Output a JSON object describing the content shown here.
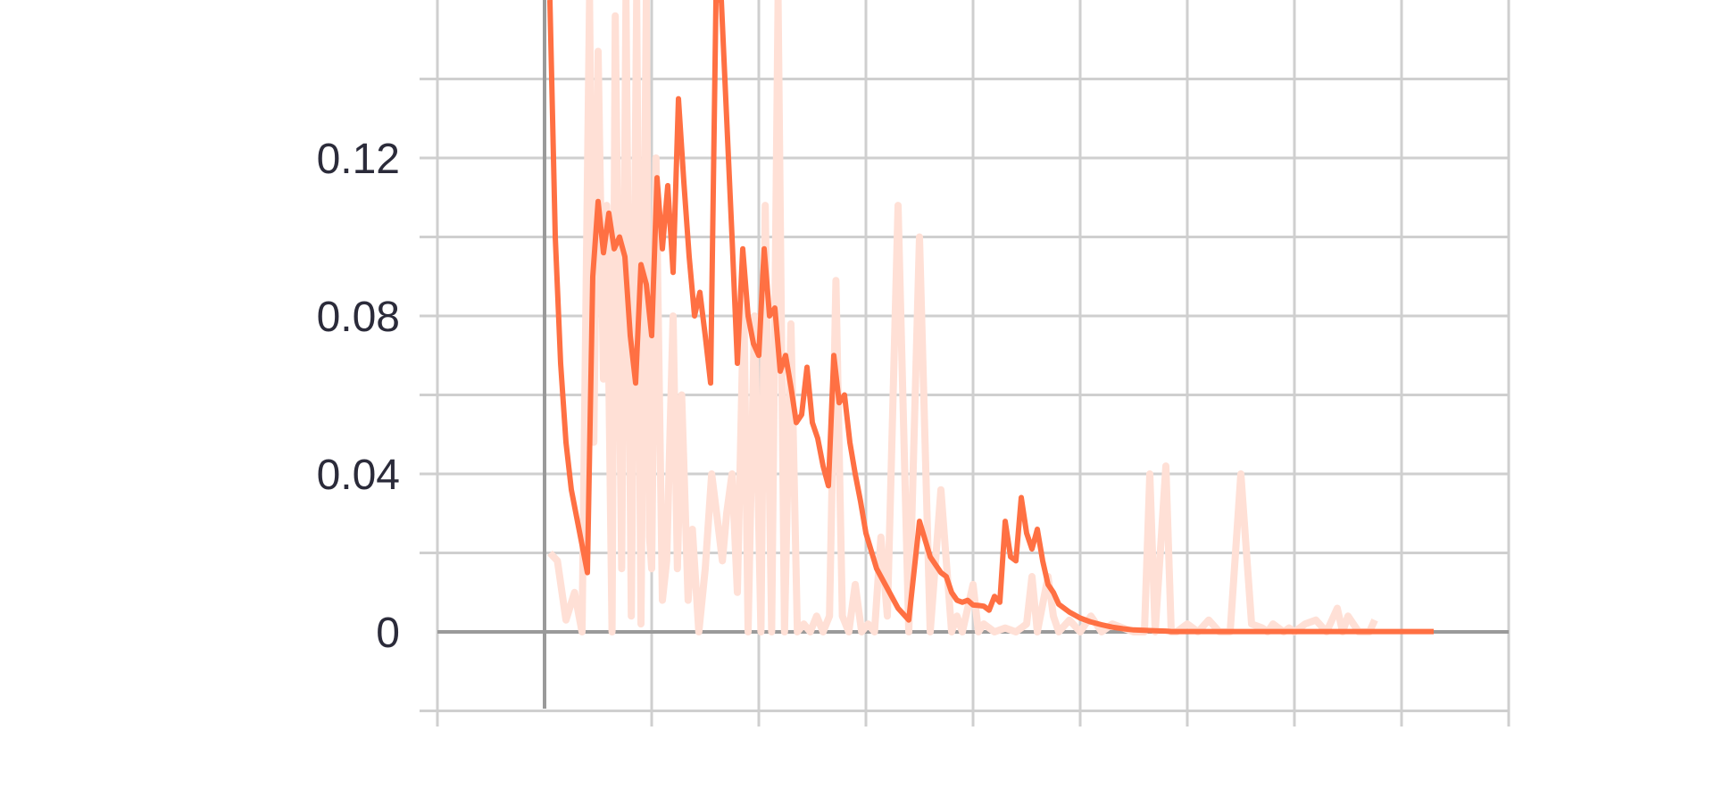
{
  "chart_data": {
    "type": "line",
    "title": "",
    "xlabel": "",
    "ylabel": "",
    "ylim": [
      -0.02,
      0.16
    ],
    "xlim": [
      -1,
      9
    ],
    "grid": true,
    "legend": "none",
    "y_ticks": [
      {
        "value": 0.12,
        "label": "0.12"
      },
      {
        "value": 0.08,
        "label": "0.08"
      },
      {
        "value": 0.04,
        "label": "0.04"
      },
      {
        "value": 0,
        "label": "0"
      }
    ],
    "y_minor_grid": [
      0.14,
      0.1,
      0.06,
      0.02,
      -0.02
    ],
    "x_grid": [
      -1,
      0,
      1,
      2,
      3,
      4,
      5,
      6,
      7,
      8,
      9
    ],
    "colors": {
      "smoothed": "#ff7043",
      "raw": "#ffe0d6"
    },
    "series": [
      {
        "role": "raw",
        "x": [
          0.05,
          0.12,
          0.2,
          0.28,
          0.35,
          0.42,
          0.46,
          0.5,
          0.55,
          0.58,
          0.63,
          0.66,
          0.72,
          0.76,
          0.81,
          0.86,
          0.9,
          0.95,
          0.98,
          1.0,
          1.04,
          1.1,
          1.14,
          1.2,
          1.24,
          1.28,
          1.34,
          1.38,
          1.44,
          1.5,
          1.56,
          1.62,
          1.66,
          1.7,
          1.75,
          1.8,
          1.86,
          1.9,
          1.96,
          2.02,
          2.06,
          2.12,
          2.18,
          2.24,
          2.3,
          2.36,
          2.42,
          2.48,
          2.54,
          2.6,
          2.66,
          2.72,
          2.78,
          2.84,
          2.9,
          2.96,
          3.02,
          3.08,
          3.14,
          3.2,
          3.3,
          3.4,
          3.5,
          3.6,
          3.7,
          3.8,
          3.85,
          3.9,
          4.0,
          4.05,
          4.1,
          4.2,
          4.3,
          4.4,
          4.5,
          4.55,
          4.6,
          4.7,
          4.75,
          4.8,
          4.9,
          5.0,
          5.1,
          5.2,
          5.3,
          5.4,
          5.5,
          5.6,
          5.65,
          5.7,
          5.8,
          5.85,
          5.9,
          6.0,
          6.1,
          6.2,
          6.3,
          6.4,
          6.5,
          6.6,
          6.7,
          6.75,
          6.8,
          6.9,
          6.95,
          7.0,
          7.1,
          7.2,
          7.3,
          7.4,
          7.45,
          7.5,
          7.6,
          7.7,
          7.75
        ],
        "y": [
          0.02,
          0.018,
          0.003,
          0.01,
          0.0,
          0.16,
          0.048,
          0.147,
          0.064,
          0.108,
          0.0,
          0.156,
          0.016,
          0.16,
          0.004,
          0.16,
          0.002,
          0.16,
          0.024,
          0.016,
          0.12,
          0.008,
          0.018,
          0.08,
          0.016,
          0.06,
          0.008,
          0.026,
          0.0,
          0.016,
          0.04,
          0.027,
          0.018,
          0.03,
          0.04,
          0.01,
          0.085,
          0.0,
          0.08,
          0.0,
          0.108,
          0.0,
          0.16,
          0.0,
          0.078,
          0.0,
          0.002,
          0.0,
          0.004,
          0.0,
          0.004,
          0.089,
          0.004,
          0.0,
          0.012,
          0.0,
          0.002,
          0.0,
          0.024,
          0.004,
          0.108,
          0.0,
          0.1,
          0.0,
          0.036,
          0.0,
          0.004,
          0.0,
          0.012,
          0.0,
          0.002,
          0.0,
          0.001,
          0.0,
          0.002,
          0.014,
          0.0,
          0.014,
          0.004,
          0.0,
          0.003,
          0.0,
          0.004,
          0.0,
          0.002,
          0.001,
          0.0,
          0.0,
          0.04,
          0.0,
          0.042,
          0.0,
          0.0,
          0.002,
          0.0,
          0.003,
          0.0,
          0.0,
          0.04,
          0.002,
          0.001,
          0.0,
          0.002,
          0.0,
          0.001,
          0.0,
          0.002,
          0.003,
          0.0,
          0.006,
          0.0,
          0.004,
          0.0,
          0.0,
          0.003
        ]
      },
      {
        "role": "smoothed",
        "x": [
          0.05,
          0.1,
          0.15,
          0.2,
          0.25,
          0.3,
          0.35,
          0.4,
          0.45,
          0.5,
          0.55,
          0.6,
          0.65,
          0.7,
          0.75,
          0.8,
          0.85,
          0.9,
          0.95,
          1.0,
          1.05,
          1.1,
          1.15,
          1.2,
          1.25,
          1.3,
          1.35,
          1.4,
          1.45,
          1.5,
          1.55,
          1.6,
          1.65,
          1.7,
          1.75,
          1.8,
          1.85,
          1.9,
          1.95,
          2.0,
          2.05,
          2.1,
          2.15,
          2.2,
          2.25,
          2.3,
          2.35,
          2.4,
          2.45,
          2.5,
          2.55,
          2.6,
          2.65,
          2.7,
          2.75,
          2.8,
          2.85,
          2.9,
          2.95,
          3.0,
          3.1,
          3.2,
          3.3,
          3.4,
          3.5,
          3.6,
          3.7,
          3.75,
          3.8,
          3.85,
          3.9,
          3.95,
          4.0,
          4.05,
          4.1,
          4.15,
          4.2,
          4.25,
          4.3,
          4.35,
          4.4,
          4.45,
          4.5,
          4.55,
          4.6,
          4.65,
          4.7,
          4.75,
          4.8,
          4.9,
          5.0,
          5.1,
          5.2,
          5.3,
          5.4,
          5.5,
          5.6,
          5.7,
          5.8,
          5.85,
          5.9,
          5.95,
          6.0,
          6.05,
          6.1,
          6.15,
          6.2,
          6.25,
          6.3,
          6.35,
          6.4,
          6.45,
          6.5,
          6.55,
          6.6,
          6.65,
          6.7,
          6.75,
          6.8,
          6.85,
          6.9,
          6.95,
          7.0,
          7.05,
          7.1,
          7.15,
          7.2,
          7.25,
          7.3,
          7.35,
          7.4,
          7.45,
          7.5,
          7.55,
          7.6,
          7.65,
          7.7,
          7.75,
          7.8,
          7.85,
          7.9,
          7.95,
          8.0,
          8.05,
          8.1,
          8.15,
          8.2,
          8.25,
          8.3
        ],
        "y": [
          0.16,
          0.1,
          0.068,
          0.048,
          0.036,
          0.029,
          0.022,
          0.015,
          0.09,
          0.109,
          0.096,
          0.106,
          0.097,
          0.1,
          0.095,
          0.075,
          0.063,
          0.093,
          0.088,
          0.075,
          0.115,
          0.097,
          0.113,
          0.091,
          0.135,
          0.114,
          0.095,
          0.08,
          0.086,
          0.075,
          0.063,
          0.16,
          0.16,
          0.13,
          0.1,
          0.068,
          0.097,
          0.08,
          0.073,
          0.07,
          0.097,
          0.08,
          0.082,
          0.066,
          0.07,
          0.062,
          0.053,
          0.055,
          0.067,
          0.053,
          0.049,
          0.042,
          0.037,
          0.07,
          0.058,
          0.06,
          0.048,
          0.04,
          0.033,
          0.025,
          0.016,
          0.011,
          0.006,
          0.003,
          0.028,
          0.019,
          0.015,
          0.014,
          0.01,
          0.008,
          0.0075,
          0.008,
          0.0068,
          0.0067,
          0.0065,
          0.0055,
          0.009,
          0.0075,
          0.028,
          0.019,
          0.018,
          0.034,
          0.025,
          0.021,
          0.026,
          0.018,
          0.012,
          0.01,
          0.007,
          0.005,
          0.0035,
          0.0025,
          0.0018,
          0.0012,
          0.0008,
          0.0005,
          0.0004,
          0.0003,
          0.0002,
          0.0001,
          0.0001,
          0.0001,
          0.0001,
          0.0001,
          0.0001,
          0.0001,
          0.0001,
          0.0001,
          0.0001,
          0.0001,
          0.0001,
          0.0001,
          0.0001,
          0.0001,
          0.0001,
          0.0001,
          0.0001,
          0.0001,
          0.0001,
          0.0001,
          0.0001,
          0.0001,
          0.0001,
          0.0001,
          0.0001,
          0.0001,
          0.0001,
          0.0001,
          0.0001,
          0.0001,
          0.0001,
          0.0001,
          0.0001,
          0.0001,
          0.0001,
          0.0001,
          0.0001,
          0.0001,
          0.0001,
          0.0001,
          0.0001,
          0.0001,
          0.0001,
          0.0001,
          0.0001,
          0.0001,
          0.0001,
          0.0001,
          0.0001
        ]
      }
    ]
  }
}
